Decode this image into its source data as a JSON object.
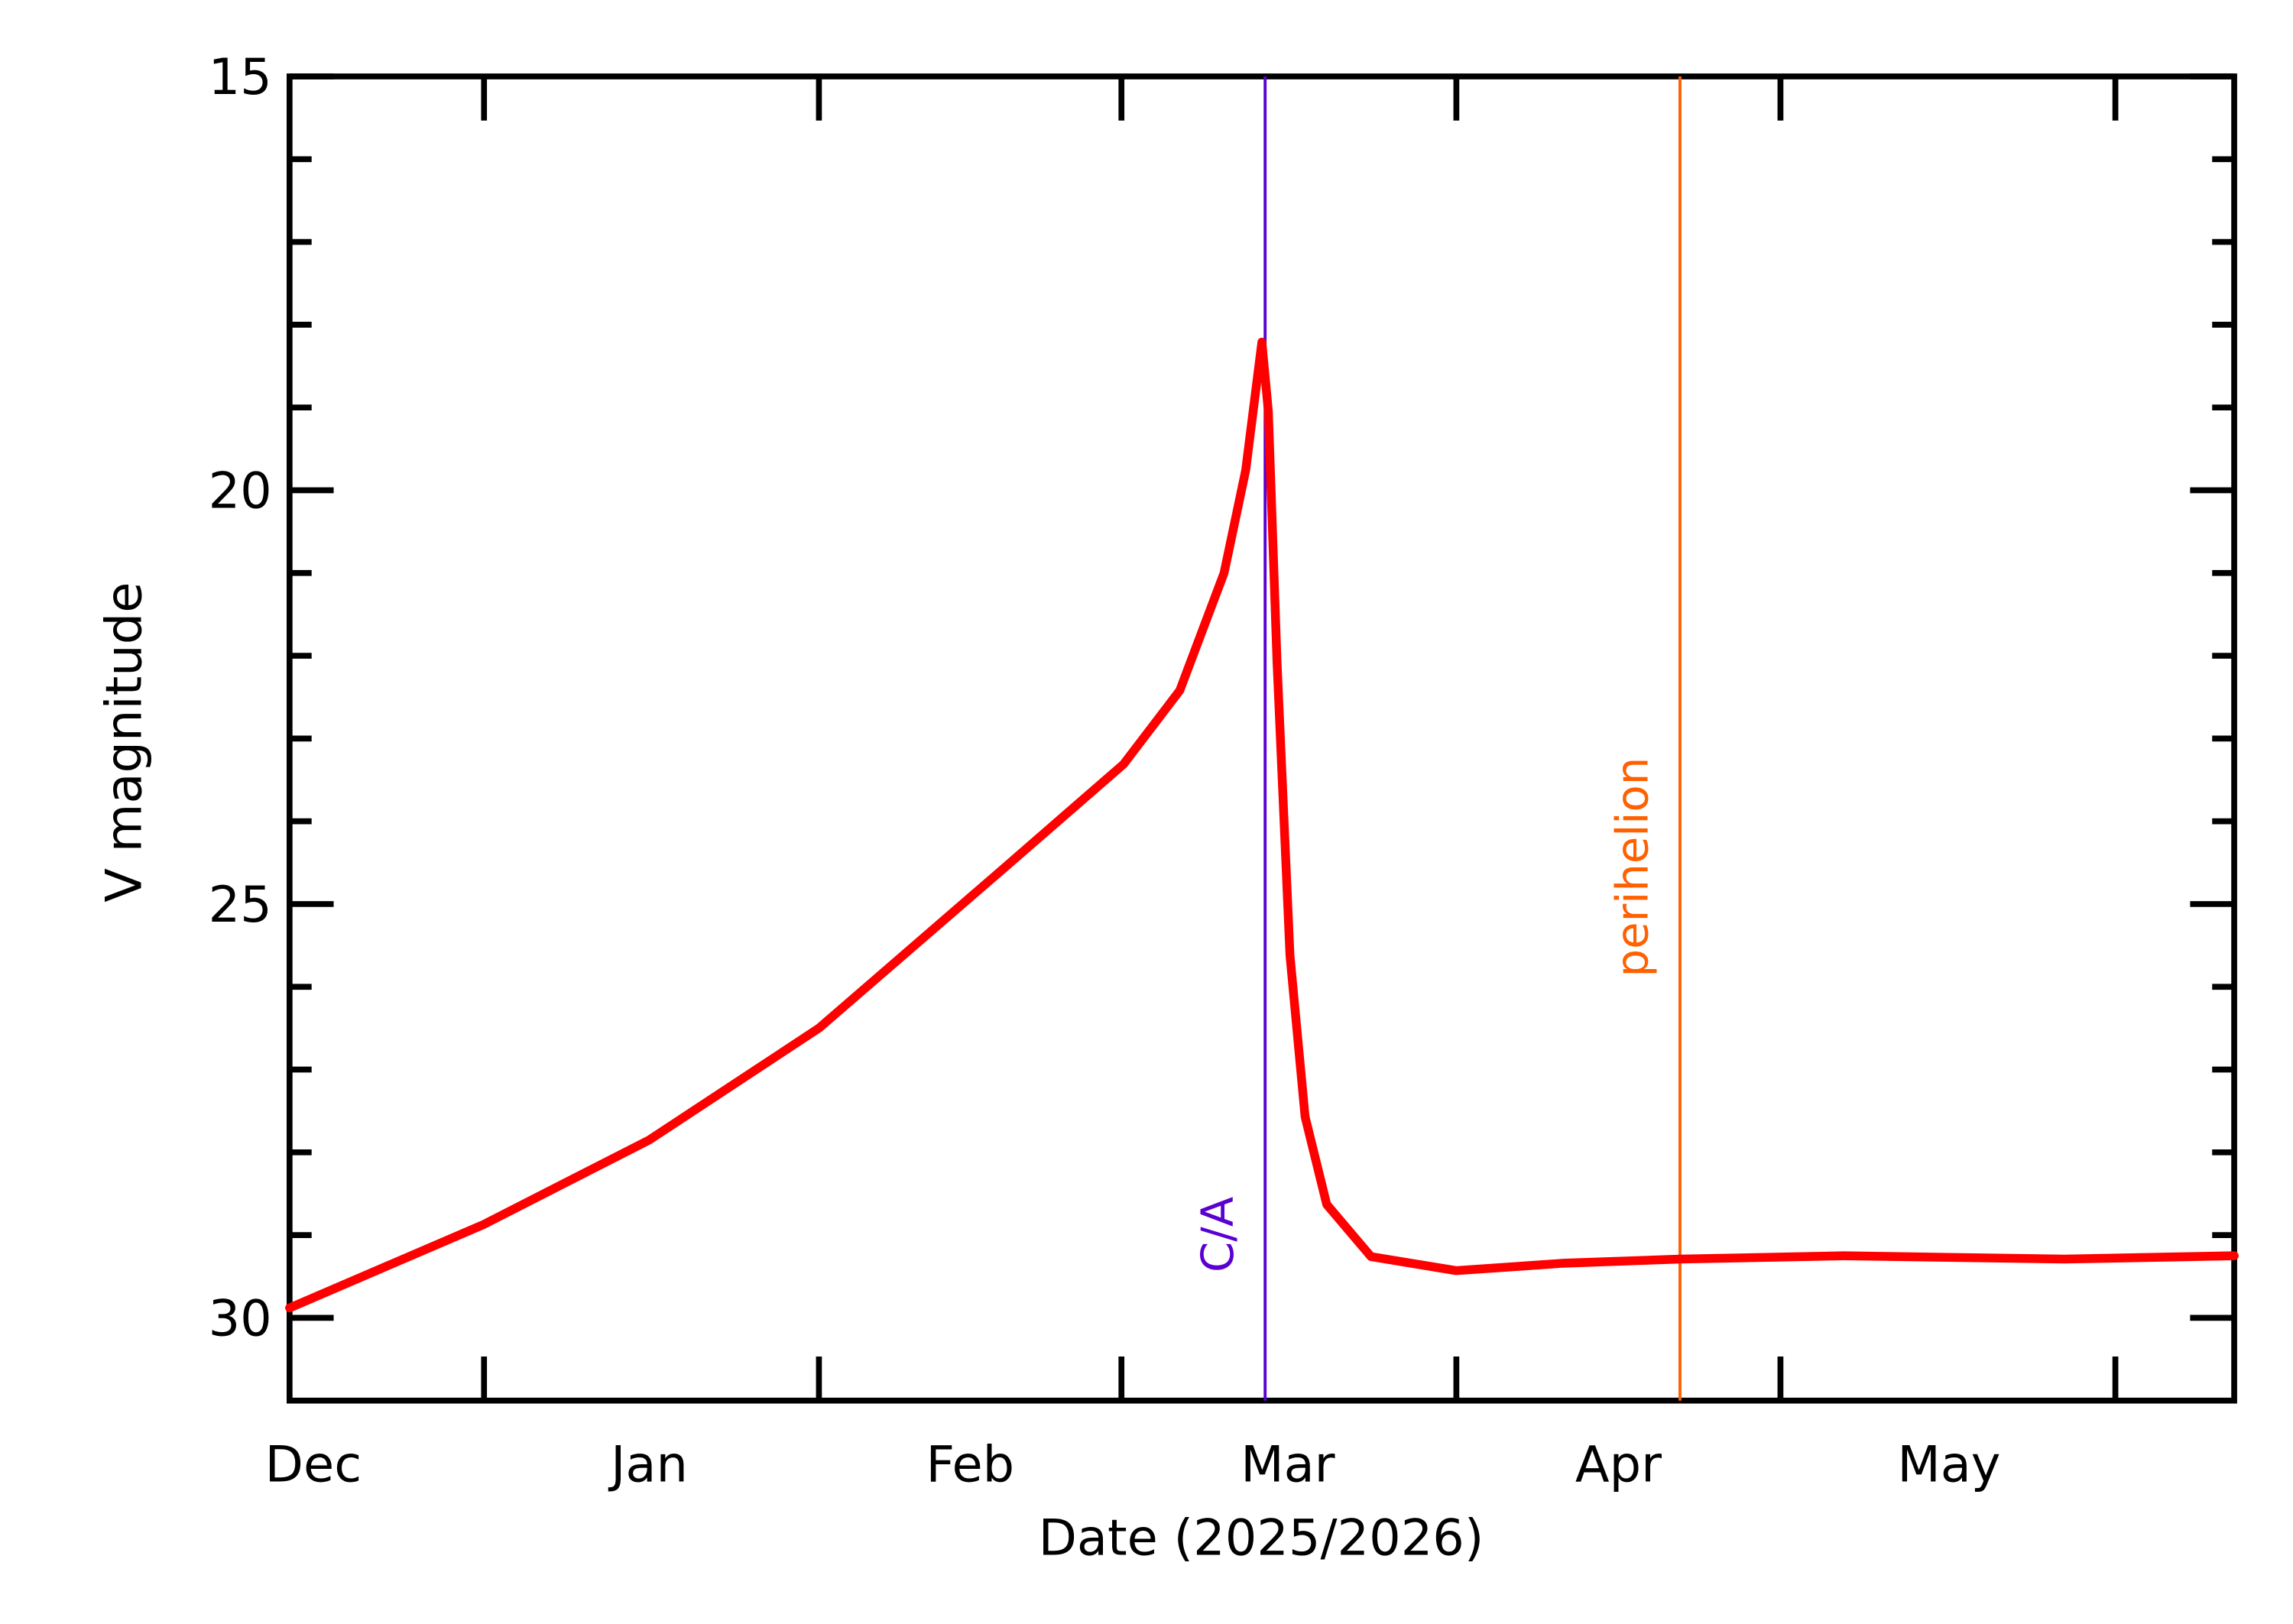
{
  "chart_data": {
    "type": "line",
    "x_axis_label": "Date (2025/2026)",
    "y_axis_label": "V magnitude",
    "x": [
      13,
      31,
      46.3,
      62,
      79.1,
      90.2,
      95.4,
      99.5,
      101.5,
      103.0,
      103.6,
      104.4,
      105.6,
      107,
      109,
      113.1,
      121,
      130.9,
      141.7,
      156.9,
      177.3,
      193
    ],
    "series": [
      {
        "color": "#ff0000",
        "values": [
          29.88,
          28.87,
          27.85,
          26.5,
          24.57,
          23.31,
          22.42,
          21.0,
          19.76,
          18.21,
          19.05,
          22.07,
          25.62,
          27.57,
          28.63,
          29.26,
          29.43,
          29.34,
          29.29,
          29.25,
          29.29,
          29.25
        ]
      }
    ],
    "xlim": [
      13,
      193
    ],
    "xticks": [
      {
        "value": 15.2,
        "label": "Dec"
      },
      {
        "value": 46.3,
        "label": "Jan"
      },
      {
        "value": 76,
        "label": "Feb"
      },
      {
        "value": 105.4,
        "label": "Mar"
      },
      {
        "value": 136,
        "label": "Apr"
      },
      {
        "value": 166.6,
        "label": "May"
      }
    ],
    "x_minor_ticks": [
      31,
      62,
      90,
      121,
      151,
      182
    ],
    "ylim": [
      31,
      15
    ],
    "yticks": [
      15,
      20,
      25,
      30
    ],
    "y_minor_ticks": [
      16,
      17,
      18,
      19,
      21,
      22,
      23,
      24,
      26,
      27,
      28,
      29
    ],
    "vlines": [
      {
        "x": 103.3,
        "label": "C/A",
        "color": "#5a00d2"
      },
      {
        "x": 141.7,
        "label": "perihelion",
        "color": "#ff6000"
      }
    ]
  }
}
